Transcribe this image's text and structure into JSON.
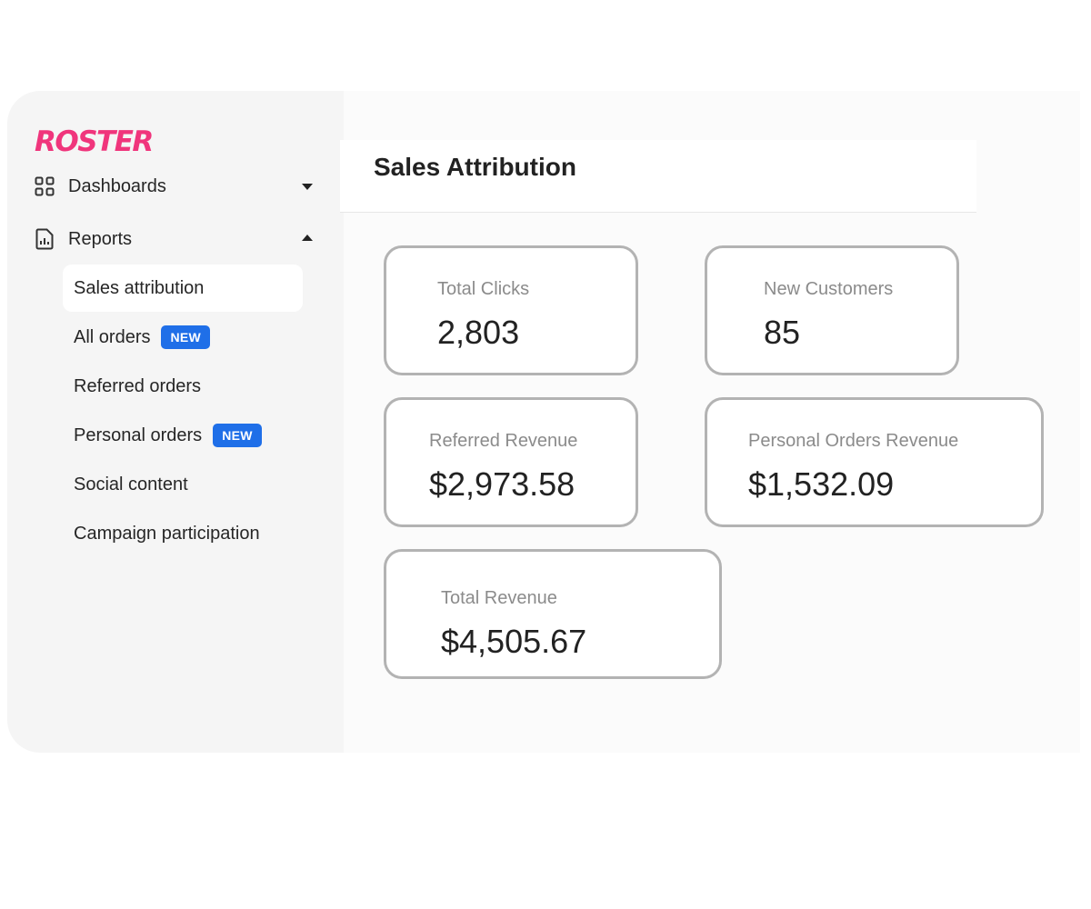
{
  "brand": {
    "logo_text": "ROSTER",
    "accent_color": "#f0357c"
  },
  "sidebar": {
    "groups": [
      {
        "label": "Dashboards",
        "icon": "grid-icon",
        "state": "collapsed"
      },
      {
        "label": "Reports",
        "icon": "report-icon",
        "state": "expanded"
      }
    ],
    "items": [
      {
        "label": "Sales attribution",
        "active": true
      },
      {
        "label": "All orders",
        "badge": "NEW"
      },
      {
        "label": "Referred orders"
      },
      {
        "label": "Personal orders",
        "badge": "NEW"
      },
      {
        "label": "Social content"
      },
      {
        "label": "Campaign participation"
      }
    ]
  },
  "header": {
    "title": "Sales Attribution"
  },
  "metrics": [
    {
      "label": "Total Clicks",
      "value": "2,803"
    },
    {
      "label": "New Customers",
      "value": "85"
    },
    {
      "label": "Referred Revenue",
      "value": "$2,973.58"
    },
    {
      "label": "Personal Orders Revenue",
      "value": "$1,532.09"
    },
    {
      "label": "Total Revenue",
      "value": "$4,505.67"
    }
  ],
  "colors": {
    "badge": "#1f6fe8",
    "card_border": "#b3b3b3",
    "sidebar_bg": "#f5f5f5"
  }
}
